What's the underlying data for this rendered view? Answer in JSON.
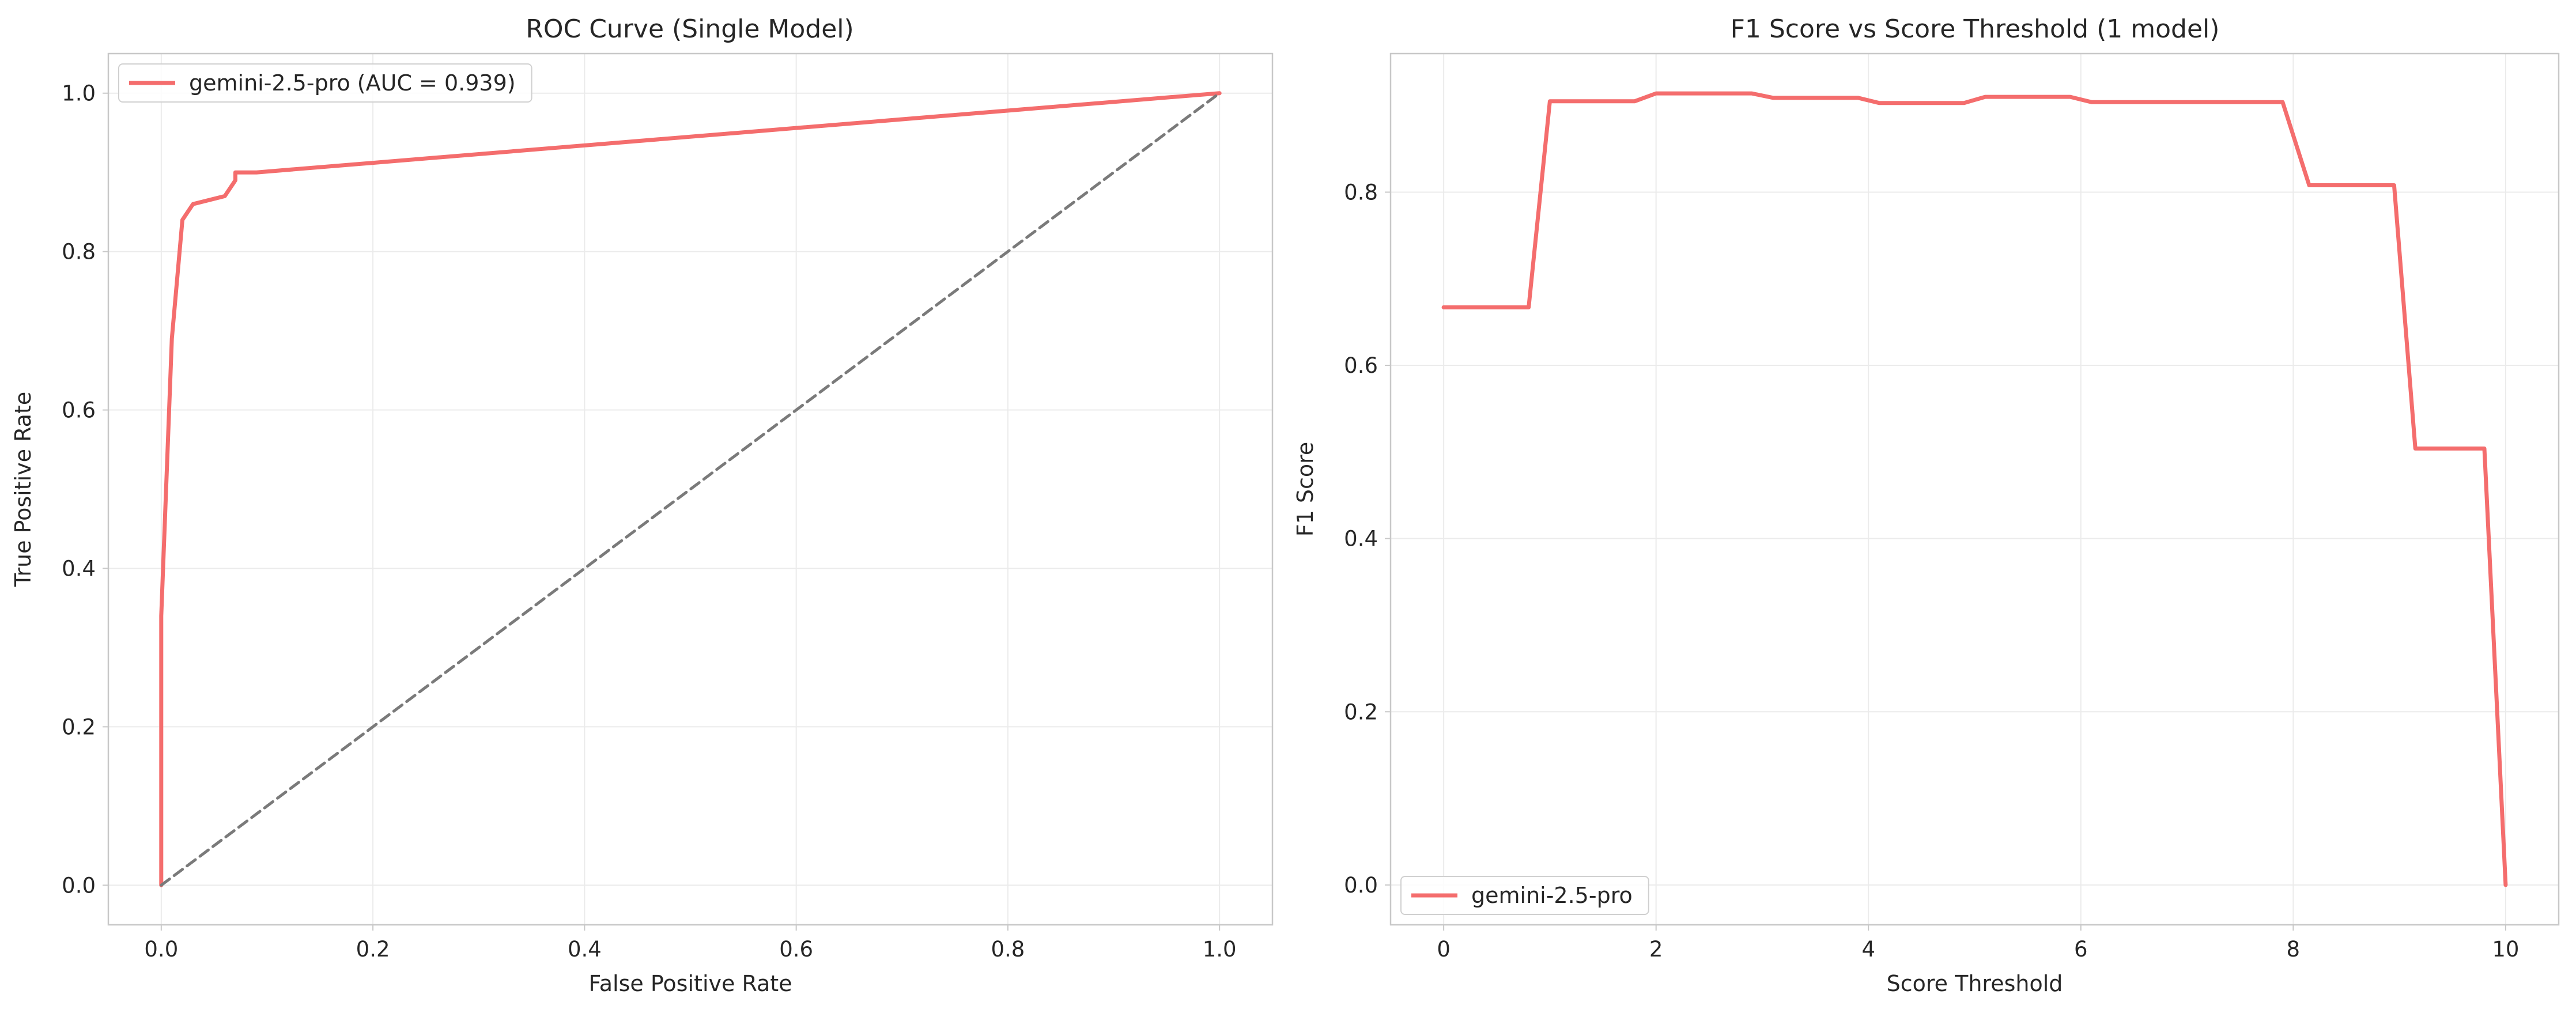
{
  "colors": {
    "series": "#f46d6d",
    "diagonal": "#7a7a7a"
  },
  "chart_data": [
    {
      "type": "line",
      "title": "ROC Curve (Single Model)",
      "xlabel": "False Positive Rate",
      "ylabel": "True Positive Rate",
      "xlim": [
        -0.05,
        1.05
      ],
      "ylim": [
        -0.05,
        1.05
      ],
      "xticks": [
        0.0,
        0.2,
        0.4,
        0.6,
        0.8,
        1.0
      ],
      "yticks": [
        0.0,
        0.2,
        0.4,
        0.6,
        0.8,
        1.0
      ],
      "tick_labels_x": [
        "0.0",
        "0.2",
        "0.4",
        "0.6",
        "0.8",
        "1.0"
      ],
      "tick_labels_y": [
        "0.0",
        "0.2",
        "0.4",
        "0.6",
        "0.8",
        "1.0"
      ],
      "grid": true,
      "legend_position": "top-left",
      "series": [
        {
          "name": "gemini-2.5-pro (AUC = 0.939)",
          "x": [
            0.0,
            0.0,
            0.01,
            0.02,
            0.03,
            0.06,
            0.07,
            0.07,
            0.09,
            1.0
          ],
          "y": [
            0.0,
            0.34,
            0.69,
            0.84,
            0.86,
            0.87,
            0.89,
            0.9,
            0.9,
            1.0
          ]
        },
        {
          "x": [
            0.0,
            1.0
          ],
          "y": [
            0.0,
            1.0
          ],
          "style": "dashed"
        }
      ]
    },
    {
      "type": "line",
      "title": "F1 Score vs Score Threshold (1 model)",
      "xlabel": "Score Threshold",
      "ylabel": "F1 Score",
      "xlim": [
        -0.5,
        10.5
      ],
      "ylim": [
        -0.046,
        0.96
      ],
      "xticks": [
        0,
        2,
        4,
        6,
        8,
        10
      ],
      "yticks": [
        0.0,
        0.2,
        0.4,
        0.6,
        0.8
      ],
      "tick_labels_x": [
        "0",
        "2",
        "4",
        "6",
        "8",
        "10"
      ],
      "tick_labels_y": [
        "0.0",
        "0.2",
        "0.4",
        "0.6",
        "0.8"
      ],
      "grid": true,
      "legend_position": "bottom-left",
      "series": [
        {
          "name": "gemini-2.5-pro",
          "x": [
            0.0,
            0.8,
            1.0,
            1.8,
            2.0,
            2.9,
            3.1,
            3.9,
            4.1,
            4.9,
            5.1,
            5.9,
            6.1,
            7.9,
            8.15,
            8.95,
            9.15,
            9.8,
            10.0
          ],
          "y": [
            0.667,
            0.667,
            0.905,
            0.905,
            0.914,
            0.914,
            0.909,
            0.909,
            0.903,
            0.903,
            0.91,
            0.91,
            0.904,
            0.904,
            0.808,
            0.808,
            0.504,
            0.504,
            0.0
          ]
        }
      ]
    }
  ]
}
